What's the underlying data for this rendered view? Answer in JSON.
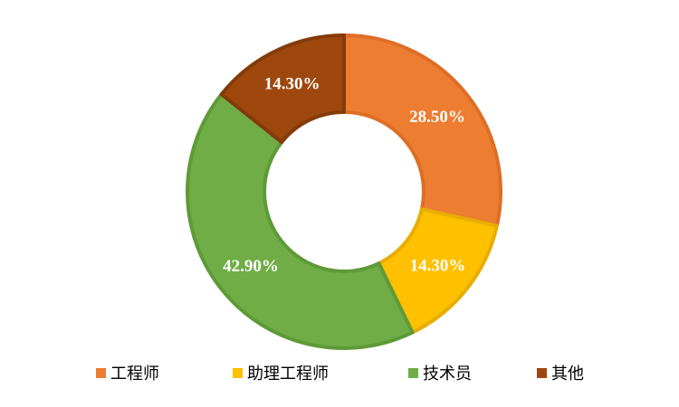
{
  "chart_data": {
    "type": "pie",
    "donut": true,
    "categories": [
      "工程师",
      "助理工程师",
      "技术员",
      "其他"
    ],
    "values": [
      28.5,
      14.3,
      42.9,
      14.3
    ],
    "labels": [
      "28.50%",
      "14.30%",
      "42.90%",
      "14.30%"
    ],
    "colors": [
      "#ED7D31",
      "#FFC000",
      "#70AD47",
      "#9E480E"
    ],
    "border_colors": [
      "#DE6E26",
      "#E8AD00",
      "#5E9A38",
      "#843B0A"
    ],
    "legend": "bottom",
    "title": ""
  }
}
